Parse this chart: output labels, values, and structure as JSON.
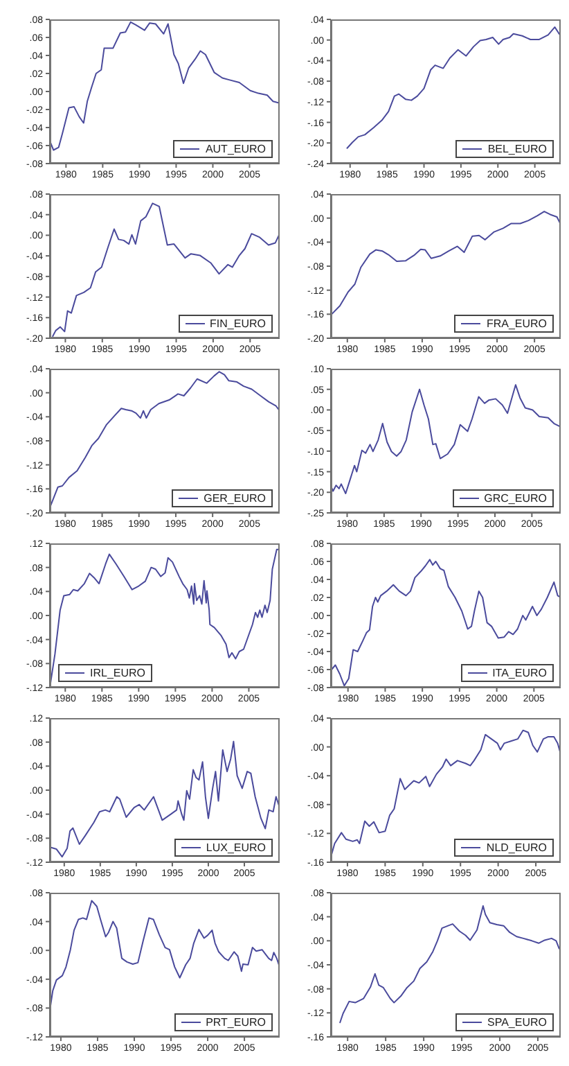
{
  "chart_data": [
    {
      "type": "line",
      "xlim": [
        1977.8,
        2009.1
      ],
      "xticks": [
        1980,
        1985,
        1990,
        1995,
        2000,
        2005
      ],
      "ylim": [
        -0.08,
        0.08
      ],
      "yticks": [
        {
          "value": 0.08,
          "label": ".08"
        },
        {
          "value": 0.06,
          "label": ".06"
        },
        {
          "value": 0.04,
          "label": ".04"
        },
        {
          "value": 0.02,
          "label": ".02"
        },
        {
          "value": 0,
          "label": ".00"
        },
        {
          "value": -0.02,
          "label": "-.02"
        },
        {
          "value": -0.04,
          "label": "-.04"
        },
        {
          "value": -0.06,
          "label": "-.06"
        },
        {
          "value": -0.08,
          "label": "-.08"
        }
      ],
      "legend": "bottom right",
      "series": [
        {
          "name": "AUT_EURO",
          "color": "#4a4a9c",
          "x": [
            1977.8,
            1978.3,
            1979,
            1979.5,
            1980.4,
            1981.1,
            1981.8,
            1982.4,
            1982.9,
            1983.5,
            1984.1,
            1984.8,
            1985.2,
            1986.4,
            1987.4,
            1988.1,
            1988.8,
            1989.5,
            1990.7,
            1991.4,
            1992.2,
            1993.3,
            1993.9,
            1994.7,
            1995.3,
            1996,
            1996.7,
            1997.6,
            1998.3,
            1999,
            2000.2,
            2001.3,
            2002.2,
            2003.6,
            2005.1,
            2006.2,
            2007.4,
            2008.2,
            2009.1
          ],
          "values": [
            -0.055,
            -0.065,
            -0.062,
            -0.047,
            -0.018,
            -0.017,
            -0.028,
            -0.035,
            -0.011,
            0.005,
            0.02,
            0.024,
            0.048,
            0.048,
            0.065,
            0.066,
            0.077,
            0.074,
            0.068,
            0.076,
            0.075,
            0.064,
            0.075,
            0.041,
            0.031,
            0.009,
            0.026,
            0.036,
            0.045,
            0.041,
            0.021,
            0.015,
            0.013,
            0.01,
            0.001,
            -0.002,
            -0.004,
            -0.011,
            -0.013
          ]
        }
      ]
    },
    {
      "type": "line",
      "xlim": [
        1977.4,
        2008.5
      ],
      "xticks": [
        1980,
        1985,
        1990,
        1995,
        2000,
        2005
      ],
      "ylim": [
        -0.24,
        0.04
      ],
      "yticks": [
        {
          "value": 0.04,
          "label": ".04"
        },
        {
          "value": 0,
          "label": ".00"
        },
        {
          "value": -0.04,
          "label": "-.04"
        },
        {
          "value": -0.08,
          "label": "-.08"
        },
        {
          "value": -0.12,
          "label": "-.12"
        },
        {
          "value": -0.16,
          "label": "-.16"
        },
        {
          "value": -0.2,
          "label": "-.20"
        },
        {
          "value": -0.24,
          "label": "-.24"
        }
      ],
      "legend": "bottom right",
      "series": [
        {
          "name": "BEL_EURO",
          "color": "#4a4a9c",
          "x": [
            1979.6,
            1980.3,
            1981.1,
            1982,
            1983.2,
            1984.3,
            1985.2,
            1986,
            1986.6,
            1987.5,
            1988.3,
            1989.1,
            1990,
            1990.9,
            1991.5,
            1992.6,
            1993.5,
            1994.6,
            1995.7,
            1996.7,
            1997.6,
            1998.4,
            1999.3,
            2000.1,
            2000.7,
            2001.6,
            2002.1,
            2003.3,
            2004.4,
            2005.6,
            2006.8,
            2007.7,
            2008.2,
            2008.5
          ],
          "values": [
            -0.21,
            -0.199,
            -0.188,
            -0.184,
            -0.17,
            -0.156,
            -0.139,
            -0.109,
            -0.105,
            -0.115,
            -0.117,
            -0.109,
            -0.094,
            -0.058,
            -0.049,
            -0.055,
            -0.035,
            -0.019,
            -0.031,
            -0.013,
            -0.001,
            0.001,
            0.005,
            -0.008,
            0.001,
            0.005,
            0.012,
            0.008,
            0.001,
            0.001,
            0.01,
            0.025,
            0.014,
            0.008
          ]
        }
      ]
    },
    {
      "type": "line",
      "xlim": [
        1977.9,
        2009
      ],
      "xticks": [
        1980,
        1985,
        1990,
        1995,
        2000,
        2005
      ],
      "ylim": [
        -0.2,
        0.08
      ],
      "yticks": [
        {
          "value": 0.08,
          "label": ".08"
        },
        {
          "value": 0.04,
          "label": ".04"
        },
        {
          "value": 0,
          "label": ".00"
        },
        {
          "value": -0.04,
          "label": "-.04"
        },
        {
          "value": -0.08,
          "label": "-.08"
        },
        {
          "value": -0.12,
          "label": "-.12"
        },
        {
          "value": -0.16,
          "label": "-.16"
        },
        {
          "value": -0.2,
          "label": "-.20"
        }
      ],
      "legend": "bottom right",
      "series": [
        {
          "name": "FIN_EURO",
          "color": "#4a4a9c",
          "x": [
            1978.3,
            1978.7,
            1979.3,
            1979.9,
            1980.3,
            1980.8,
            1981.5,
            1982.5,
            1983.4,
            1984.1,
            1984.9,
            1985.8,
            1986.6,
            1987.2,
            1987.9,
            1988.6,
            1989,
            1989.5,
            1990.2,
            1990.9,
            1991.8,
            1992.7,
            1993.8,
            1994.7,
            1996.2,
            1997,
            1998.2,
            1999.7,
            2000.8,
            2002,
            2002.6,
            2003.5,
            2004.3,
            2005.2,
            2006.3,
            2007.5,
            2008.4,
            2009
          ],
          "values": [
            -0.196,
            -0.185,
            -0.178,
            -0.187,
            -0.147,
            -0.151,
            -0.117,
            -0.111,
            -0.102,
            -0.071,
            -0.062,
            -0.022,
            0.012,
            -0.008,
            -0.01,
            -0.017,
            0.001,
            -0.017,
            0.028,
            0.036,
            0.062,
            0.056,
            -0.019,
            -0.017,
            -0.044,
            -0.036,
            -0.039,
            -0.054,
            -0.075,
            -0.057,
            -0.062,
            -0.04,
            -0.026,
            0.003,
            -0.004,
            -0.019,
            -0.015,
            0.003
          ]
        }
      ]
    },
    {
      "type": "line",
      "xlim": [
        1977.8,
        2008.5
      ],
      "xticks": [
        1980,
        1985,
        1990,
        1995,
        2000,
        2005
      ],
      "ylim": [
        -0.2,
        0.04
      ],
      "yticks": [
        {
          "value": 0.04,
          "label": ".04"
        },
        {
          "value": 0,
          "label": ".00"
        },
        {
          "value": -0.04,
          "label": "-.04"
        },
        {
          "value": -0.08,
          "label": "-.08"
        },
        {
          "value": -0.12,
          "label": "-.12"
        },
        {
          "value": -0.16,
          "label": "-.16"
        },
        {
          "value": -0.2,
          "label": "-.20"
        }
      ],
      "legend": "bottom right",
      "series": [
        {
          "name": "FRA_EURO",
          "color": "#4a4a9c",
          "x": [
            1977.9,
            1979,
            1980.1,
            1981,
            1981.8,
            1983,
            1983.8,
            1984.7,
            1985.5,
            1986.6,
            1987.8,
            1988.9,
            1989.8,
            1990.4,
            1991.2,
            1992.4,
            1993.5,
            1994.7,
            1995.6,
            1996.7,
            1997.6,
            1998.4,
            1999.6,
            2000.8,
            2001.9,
            2003.1,
            2004.2,
            2005.4,
            2006.3,
            2007.1,
            2008,
            2008.4
          ],
          "values": [
            -0.16,
            -0.146,
            -0.123,
            -0.11,
            -0.082,
            -0.06,
            -0.053,
            -0.055,
            -0.061,
            -0.072,
            -0.071,
            -0.062,
            -0.052,
            -0.053,
            -0.067,
            -0.063,
            -0.055,
            -0.047,
            -0.057,
            -0.03,
            -0.029,
            -0.036,
            -0.023,
            -0.017,
            -0.009,
            -0.009,
            -0.004,
            0.004,
            0.011,
            0.006,
            0.002,
            -0.008
          ]
        }
      ]
    },
    {
      "type": "line",
      "xlim": [
        1977.9,
        2009.1
      ],
      "xticks": [
        1980,
        1985,
        1990,
        1995,
        2000,
        2005
      ],
      "ylim": [
        -0.2,
        0.04
      ],
      "yticks": [
        {
          "value": 0.04,
          "label": ".04"
        },
        {
          "value": 0,
          "label": ".00"
        },
        {
          "value": -0.04,
          "label": "-.04"
        },
        {
          "value": -0.08,
          "label": "-.08"
        },
        {
          "value": -0.12,
          "label": "-.12"
        },
        {
          "value": -0.16,
          "label": "-.16"
        },
        {
          "value": -0.2,
          "label": "-.20"
        }
      ],
      "legend": "bottom right",
      "series": [
        {
          "name": "GER_EURO",
          "color": "#4a4a9c",
          "x": [
            1978,
            1979,
            1979.6,
            1980.5,
            1981.6,
            1982.7,
            1983.6,
            1984.5,
            1985.6,
            1986.7,
            1987.6,
            1988.2,
            1989,
            1989.6,
            1990.2,
            1990.6,
            1991,
            1991.6,
            1992.7,
            1994.1,
            1995.3,
            1996.1,
            1997,
            1997.9,
            1999.2,
            2000.2,
            2000.9,
            2001.6,
            2002.2,
            2003.3,
            2004.2,
            2005.3,
            2006.5,
            2007.6,
            2008.6,
            2009.1
          ],
          "values": [
            -0.188,
            -0.157,
            -0.155,
            -0.141,
            -0.13,
            -0.108,
            -0.088,
            -0.076,
            -0.053,
            -0.038,
            -0.026,
            -0.028,
            -0.03,
            -0.034,
            -0.042,
            -0.03,
            -0.042,
            -0.028,
            -0.018,
            -0.012,
            -0.002,
            -0.005,
            0.008,
            0.023,
            0.016,
            0.028,
            0.035,
            0.03,
            0.02,
            0.018,
            0.011,
            0.006,
            -0.005,
            -0.015,
            -0.022,
            -0.03
          ]
        }
      ]
    },
    {
      "type": "line",
      "xlim": [
        1977.8,
        2008.9
      ],
      "xticks": [
        1980,
        1985,
        1990,
        1995,
        2000,
        2005
      ],
      "ylim": [
        -0.25,
        0.1
      ],
      "yticks": [
        {
          "value": 0.1,
          "label": ".10"
        },
        {
          "value": 0.05,
          "label": ".05"
        },
        {
          "value": 0,
          "label": ".00"
        },
        {
          "value": -0.05,
          "label": "-.05"
        },
        {
          "value": -0.1,
          "label": "-.10"
        },
        {
          "value": -0.15,
          "label": "-.15"
        },
        {
          "value": -0.2,
          "label": "-.20"
        },
        {
          "value": -0.25,
          "label": "-.25"
        }
      ],
      "legend": "bottom right",
      "series": [
        {
          "name": "GRC_EURO",
          "color": "#4a4a9c",
          "x": [
            1977.8,
            1978.1,
            1978.5,
            1978.9,
            1979.2,
            1979.8,
            1980.4,
            1981,
            1981.3,
            1982,
            1982.5,
            1983.1,
            1983.5,
            1984.2,
            1984.8,
            1985.4,
            1986,
            1986.7,
            1987.3,
            1988,
            1988.8,
            1989.8,
            1990.4,
            1991,
            1991.6,
            1992,
            1992.6,
            1993.6,
            1994.5,
            1995.3,
            1996.3,
            1996.9,
            1997.8,
            1998.6,
            1999.2,
            2000.1,
            2001,
            2001.7,
            2002.8,
            2003.4,
            2004.1,
            2005.1,
            2006,
            2007.2,
            2008,
            2008.9
          ],
          "values": [
            -0.185,
            -0.197,
            -0.183,
            -0.191,
            -0.18,
            -0.203,
            -0.169,
            -0.135,
            -0.15,
            -0.098,
            -0.105,
            -0.084,
            -0.101,
            -0.073,
            -0.033,
            -0.078,
            -0.101,
            -0.112,
            -0.101,
            -0.073,
            -0.005,
            0.05,
            0.012,
            -0.022,
            -0.084,
            -0.082,
            -0.118,
            -0.107,
            -0.084,
            -0.036,
            -0.052,
            -0.022,
            0.032,
            0.016,
            0.024,
            0.027,
            0.012,
            -0.008,
            0.061,
            0.029,
            0.005,
            0,
            -0.016,
            -0.019,
            -0.033,
            -0.041
          ]
        }
      ]
    },
    {
      "type": "line",
      "xlim": [
        1977.9,
        2009.2
      ],
      "xticks": [
        1980,
        1985,
        1990,
        1995,
        2000,
        2005
      ],
      "ylim": [
        -0.12,
        0.12
      ],
      "yticks": [
        {
          "value": 0.12,
          "label": ".12"
        },
        {
          "value": 0.08,
          "label": ".08"
        },
        {
          "value": 0.04,
          "label": ".04"
        },
        {
          "value": 0,
          "label": ".00"
        },
        {
          "value": -0.04,
          "label": "-.04"
        },
        {
          "value": -0.08,
          "label": "-.08"
        },
        {
          "value": -0.12,
          "label": "-.12"
        }
      ],
      "legend": "bottom left",
      "series": [
        {
          "name": "IRL_EURO",
          "color": "#4a4a9c",
          "x": [
            1977.9,
            1978.6,
            1979.3,
            1979.8,
            1980.6,
            1981.1,
            1981.7,
            1982.6,
            1983.3,
            1984,
            1984.6,
            1985.5,
            1986,
            1986.9,
            1988,
            1989.1,
            1990,
            1990.9,
            1991.7,
            1992.3,
            1993,
            1993.6,
            1994,
            1994.6,
            1995.5,
            1996,
            1996.6,
            1996.9,
            1997.2,
            1997.5,
            1997.6,
            1997.9,
            1998.3,
            1998.6,
            1998.9,
            1999.2,
            1999.3,
            1999.6,
            1999.7,
            2000.3,
            2001.2,
            2001.9,
            2002.3,
            2002.7,
            2003.2,
            2003.7,
            2004.3,
            2005,
            2005.5,
            2005.9,
            2006.2,
            2006.5,
            2006.8,
            2007.2,
            2007.5,
            2007.9,
            2008.2,
            2008.8,
            2009.2
          ],
          "values": [
            -0.12,
            -0.064,
            0.009,
            0.033,
            0.035,
            0.043,
            0.041,
            0.053,
            0.07,
            0.062,
            0.053,
            0.086,
            0.102,
            0.086,
            0.065,
            0.043,
            0.049,
            0.057,
            0.08,
            0.077,
            0.065,
            0.071,
            0.096,
            0.089,
            0.065,
            0.053,
            0.043,
            0.029,
            0.049,
            0.019,
            0.053,
            0.025,
            0.033,
            0.019,
            0.058,
            0.021,
            0.041,
            0.009,
            -0.015,
            -0.02,
            -0.033,
            -0.048,
            -0.07,
            -0.062,
            -0.072,
            -0.06,
            -0.056,
            -0.032,
            -0.015,
            0.005,
            -0.003,
            0.009,
            -0.003,
            0.017,
            0.005,
            0.025,
            0.077,
            0.11,
            0.11
          ]
        }
      ]
    },
    {
      "type": "line",
      "xlim": [
        1977.7,
        2008.6
      ],
      "xticks": [
        1980,
        1985,
        1990,
        1995,
        2000,
        2005
      ],
      "ylim": [
        -0.08,
        0.08
      ],
      "yticks": [
        {
          "value": 0.08,
          "label": ".08"
        },
        {
          "value": 0.06,
          "label": ".06"
        },
        {
          "value": 0.04,
          "label": ".04"
        },
        {
          "value": 0.02,
          "label": ".02"
        },
        {
          "value": 0,
          "label": ".00"
        },
        {
          "value": -0.02,
          "label": "-.02"
        },
        {
          "value": -0.04,
          "label": "-.04"
        },
        {
          "value": -0.06,
          "label": "-.06"
        },
        {
          "value": -0.08,
          "label": "-.08"
        }
      ],
      "legend": "bottom right",
      "series": [
        {
          "name": "ITA_EURO",
          "color": "#4a4a9c",
          "x": [
            1977.8,
            1978.3,
            1978.9,
            1979.5,
            1980.1,
            1980.7,
            1981.3,
            1982,
            1982.5,
            1982.9,
            1983.3,
            1983.7,
            1984,
            1984.4,
            1985.2,
            1986.1,
            1986.9,
            1987.8,
            1988.4,
            1989,
            1989.8,
            1990.4,
            1991,
            1991.4,
            1991.8,
            1992.4,
            1992.9,
            1993.5,
            1994.4,
            1995.3,
            1996.1,
            1996.6,
            1997,
            1997.6,
            1998.1,
            1998.7,
            1999.3,
            2000.2,
            2001,
            2001.6,
            2002.2,
            2002.8,
            2003.5,
            2003.9,
            2004.8,
            2005.4,
            2006,
            2006.8,
            2007.7,
            2008.2,
            2008.6
          ],
          "values": [
            -0.06,
            -0.055,
            -0.065,
            -0.078,
            -0.07,
            -0.038,
            -0.04,
            -0.028,
            -0.019,
            -0.016,
            0.01,
            0.02,
            0.015,
            0.022,
            0.027,
            0.034,
            0.027,
            0.022,
            0.027,
            0.042,
            0.049,
            0.055,
            0.062,
            0.056,
            0.06,
            0.052,
            0.05,
            0.032,
            0.02,
            0.005,
            -0.015,
            -0.012,
            0.005,
            0.027,
            0.02,
            -0.008,
            -0.012,
            -0.025,
            -0.024,
            -0.018,
            -0.021,
            -0.015,
            0,
            -0.005,
            0.01,
            0,
            0.007,
            0.02,
            0.037,
            0.022,
            0.02
          ]
        }
      ]
    },
    {
      "type": "line",
      "xlim": [
        1978,
        2009.9
      ],
      "xticks": [
        1980,
        1985,
        1990,
        1995,
        2000,
        2005
      ],
      "ylim": [
        -0.12,
        0.12
      ],
      "yticks": [
        {
          "value": 0.12,
          "label": ".12"
        },
        {
          "value": 0.08,
          "label": ".08"
        },
        {
          "value": 0.04,
          "label": ".04"
        },
        {
          "value": 0,
          "label": ".00"
        },
        {
          "value": -0.04,
          "label": "-.04"
        },
        {
          "value": -0.08,
          "label": "-.08"
        },
        {
          "value": -0.12,
          "label": "-.12"
        }
      ],
      "legend": "bottom right",
      "series": [
        {
          "name": "LUX_EURO",
          "color": "#4a4a9c",
          "x": [
            1978,
            1978.9,
            1979.7,
            1980.4,
            1980.8,
            1981.2,
            1982.1,
            1982.9,
            1984.1,
            1984.9,
            1985.7,
            1986.3,
            1987.3,
            1987.7,
            1988.6,
            1989.7,
            1990.4,
            1991.1,
            1992.4,
            1993.6,
            1994.8,
            1995.6,
            1995.8,
            1996.3,
            1996.6,
            1997,
            1997.4,
            1997.9,
            1998.3,
            1998.7,
            1999.2,
            1999.6,
            2000,
            2000.6,
            2001,
            2001.4,
            2002,
            2002.6,
            2003.1,
            2003.5,
            2004,
            2004.7,
            2005.4,
            2005.9,
            2006.5,
            2007.3,
            2007.9,
            2008.4,
            2009,
            2009.4,
            2009.9
          ],
          "values": [
            -0.095,
            -0.098,
            -0.111,
            -0.097,
            -0.068,
            -0.063,
            -0.09,
            -0.076,
            -0.054,
            -0.036,
            -0.033,
            -0.036,
            -0.011,
            -0.015,
            -0.045,
            -0.029,
            -0.024,
            -0.033,
            -0.011,
            -0.05,
            -0.04,
            -0.033,
            -0.018,
            -0.04,
            -0.05,
            -0.001,
            -0.015,
            0.034,
            0.021,
            0.017,
            0.047,
            -0.011,
            -0.047,
            0.003,
            0.031,
            -0.018,
            0.067,
            0.031,
            0.052,
            0.081,
            0.024,
            0.003,
            0.031,
            0.028,
            -0.011,
            -0.047,
            -0.064,
            -0.033,
            -0.036,
            -0.011,
            -0.029
          ]
        }
      ]
    },
    {
      "type": "line",
      "xlim": [
        1977.8,
        2008.3
      ],
      "xticks": [
        1980,
        1985,
        1990,
        1995,
        2000,
        2005
      ],
      "ylim": [
        -0.16,
        0.04
      ],
      "yticks": [
        {
          "value": 0.04,
          "label": ".04"
        },
        {
          "value": 0,
          "label": ".00"
        },
        {
          "value": -0.04,
          "label": "-.04"
        },
        {
          "value": -0.08,
          "label": "-.08"
        },
        {
          "value": -0.12,
          "label": "-.12"
        },
        {
          "value": -0.16,
          "label": "-.16"
        }
      ],
      "legend": "bottom right",
      "series": [
        {
          "name": "NLD_EURO",
          "color": "#4a4a9c",
          "x": [
            1977.9,
            1978.3,
            1979.2,
            1979.8,
            1980.7,
            1981.3,
            1981.6,
            1982.3,
            1982.9,
            1983.5,
            1984.2,
            1985,
            1985.6,
            1986.2,
            1987,
            1987.6,
            1988.2,
            1988.8,
            1989.5,
            1990.4,
            1990.9,
            1991.8,
            1992.6,
            1993.1,
            1993.7,
            1994.6,
            1995.7,
            1996.3,
            1996.8,
            1997.7,
            1998.3,
            1999.1,
            1999.9,
            2000.3,
            2000.8,
            2001.7,
            2002.6,
            2003.3,
            2004,
            2004.6,
            2005.2,
            2006,
            2006.6,
            2007.4,
            2007.9,
            2008.3
          ],
          "values": [
            -0.149,
            -0.134,
            -0.119,
            -0.128,
            -0.131,
            -0.129,
            -0.134,
            -0.103,
            -0.11,
            -0.104,
            -0.119,
            -0.117,
            -0.095,
            -0.086,
            -0.044,
            -0.059,
            -0.053,
            -0.047,
            -0.05,
            -0.041,
            -0.055,
            -0.038,
            -0.028,
            -0.017,
            -0.026,
            -0.019,
            -0.023,
            -0.026,
            -0.019,
            -0.004,
            0.017,
            0.011,
            0.005,
            -0.004,
            0.005,
            0.008,
            0.011,
            0.023,
            0.02,
            0.002,
            -0.007,
            0.011,
            0.014,
            0.014,
            0.005,
            -0.01
          ]
        }
      ]
    },
    {
      "type": "line",
      "xlim": [
        1978.5,
        2009.8
      ],
      "xticks": [
        1980,
        1985,
        1990,
        1995,
        2000,
        2005
      ],
      "ylim": [
        -0.12,
        0.08
      ],
      "yticks": [
        {
          "value": 0.08,
          "label": ".08"
        },
        {
          "value": 0.04,
          "label": ".04"
        },
        {
          "value": 0,
          "label": ".00"
        },
        {
          "value": -0.04,
          "label": "-.04"
        },
        {
          "value": -0.08,
          "label": "-.08"
        },
        {
          "value": -0.12,
          "label": "-.12"
        }
      ],
      "legend": "bottom right",
      "series": [
        {
          "name": "PRT_EURO",
          "color": "#4a4a9c",
          "x": [
            1978.5,
            1978.9,
            1979.4,
            1980.2,
            1980.7,
            1981.3,
            1981.8,
            1982.4,
            1983,
            1983.5,
            1984.2,
            1984.9,
            1985.4,
            1986.1,
            1986.5,
            1987.1,
            1987.6,
            1988.3,
            1989,
            1989.8,
            1990.5,
            1991.2,
            1992,
            1992.6,
            1993.4,
            1994.2,
            1994.8,
            1995.5,
            1996.2,
            1997,
            1997.6,
            1998.1,
            1998.8,
            1999.5,
            2000,
            2000.6,
            2001,
            2001.5,
            2002.3,
            2002.8,
            2003.6,
            2004.1,
            2004.6,
            2004.8,
            2005.5,
            2006.1,
            2006.6,
            2007.4,
            2008.3,
            2008.7,
            2009,
            2009.4,
            2009.8
          ],
          "values": [
            -0.083,
            -0.056,
            -0.041,
            -0.035,
            -0.023,
            0.001,
            0.028,
            0.043,
            0.045,
            0.043,
            0.069,
            0.061,
            0.043,
            0.019,
            0.025,
            0.04,
            0.031,
            -0.011,
            -0.016,
            -0.019,
            -0.017,
            0.013,
            0.045,
            0.043,
            0.022,
            0.004,
            0.001,
            -0.023,
            -0.038,
            -0.02,
            -0.011,
            0.01,
            0.029,
            0.017,
            0.021,
            0.028,
            0.01,
            -0.002,
            -0.011,
            -0.014,
            -0.002,
            -0.008,
            -0.029,
            -0.019,
            -0.02,
            0.004,
            -0.001,
            0.001,
            -0.011,
            -0.014,
            -0.003,
            -0.011,
            -0.023
          ]
        }
      ]
    },
    {
      "type": "line",
      "xlim": [
        1977.8,
        2008
      ],
      "xticks": [
        1980,
        1985,
        1990,
        1995,
        2000,
        2005
      ],
      "ylim": [
        -0.16,
        0.08
      ],
      "yticks": [
        {
          "value": 0.08,
          "label": ".08"
        },
        {
          "value": 0.04,
          "label": ".04"
        },
        {
          "value": 0,
          "label": ".00"
        },
        {
          "value": -0.04,
          "label": "-.04"
        },
        {
          "value": -0.08,
          "label": "-.08"
        },
        {
          "value": -0.12,
          "label": "-.12"
        },
        {
          "value": -0.16,
          "label": "-.16"
        }
      ],
      "legend": "bottom right",
      "series": [
        {
          "name": "SPA_EURO",
          "color": "#4a4a9c",
          "x": [
            1979,
            1979.4,
            1980.2,
            1981,
            1982.1,
            1983,
            1983.6,
            1984.1,
            1984.7,
            1985.6,
            1986.1,
            1987,
            1987.8,
            1988.7,
            1989.5,
            1990.4,
            1991.2,
            1991.8,
            1992.4,
            1993.2,
            1993.8,
            1994.7,
            1995.5,
            1996.1,
            1997,
            1997.8,
            1998.1,
            1998.7,
            1999.6,
            2000.5,
            2001.3,
            2002.2,
            2003.1,
            2004.2,
            2005.1,
            2005.9,
            2006.8,
            2007.4,
            2007.8
          ],
          "values": [
            -0.136,
            -0.121,
            -0.101,
            -0.103,
            -0.096,
            -0.077,
            -0.055,
            -0.074,
            -0.078,
            -0.096,
            -0.103,
            -0.092,
            -0.078,
            -0.067,
            -0.046,
            -0.035,
            -0.018,
            0,
            0.021,
            0.025,
            0.028,
            0.016,
            0.009,
            0.001,
            0.018,
            0.058,
            0.044,
            0.03,
            0.027,
            0.025,
            0.014,
            0.007,
            0.004,
            0,
            -0.004,
            0.001,
            0.004,
            0,
            -0.013
          ]
        }
      ]
    }
  ]
}
